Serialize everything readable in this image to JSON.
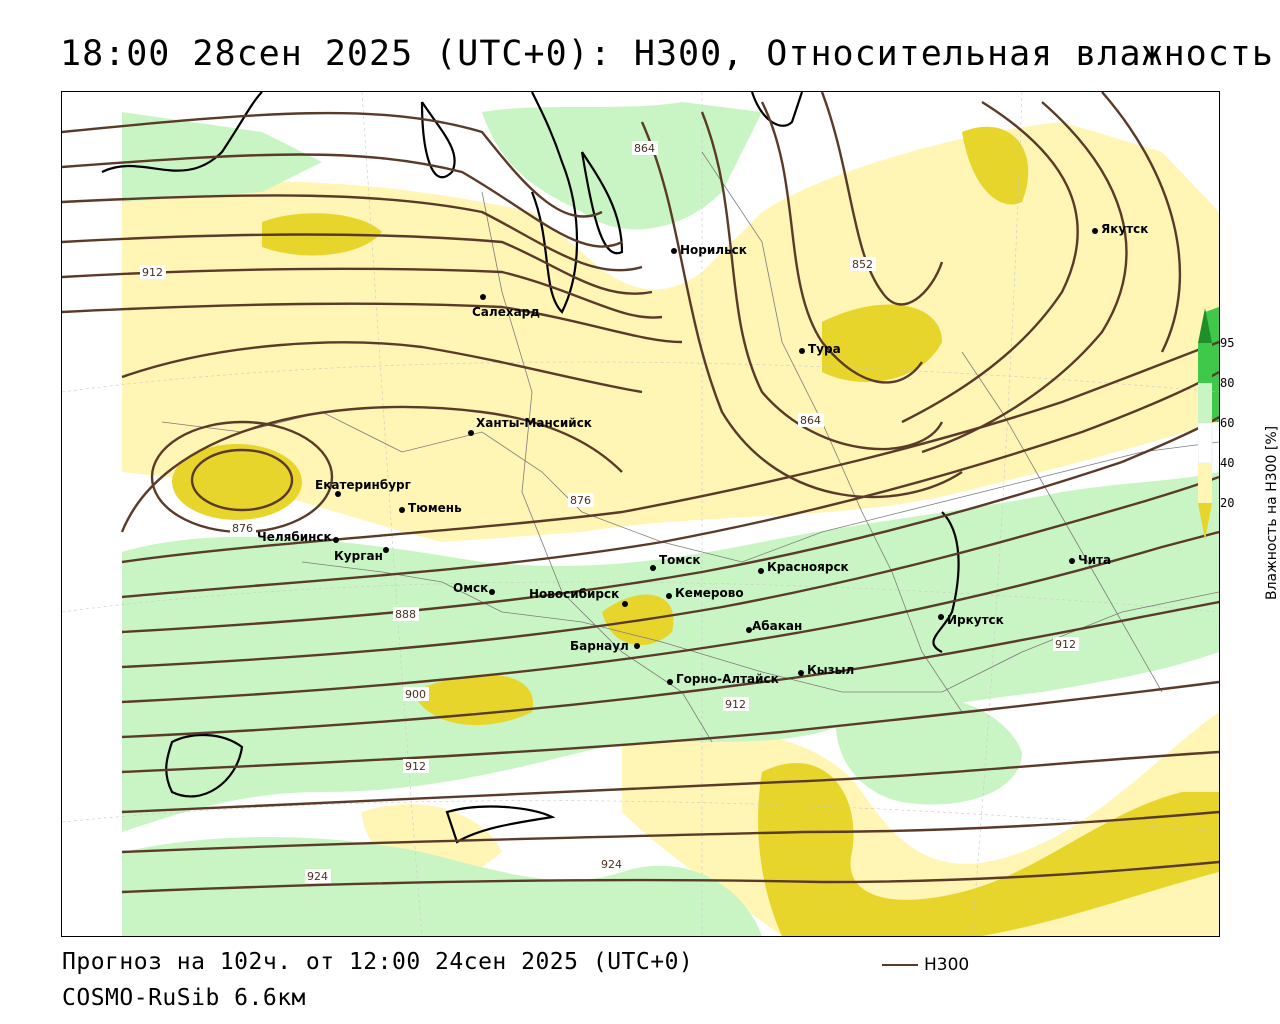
{
  "header": {
    "title": "18:00 28сен 2025 (UTC+0): H300, Относительная влажность"
  },
  "footer": {
    "forecast": "Прогноз на 102ч. от 12:00 24сен 2025 (UTC+0)",
    "model": "COSMO-RuSib 6.6км"
  },
  "legend": {
    "line_label": "H300",
    "line_color": "#5a3a28"
  },
  "colorbar": {
    "title": "Влажность на H300 [%]",
    "ticks": [
      "95",
      "80",
      "60",
      "40",
      "20"
    ],
    "colors": {
      "above_95": "#1f8f2a",
      "80_95": "#3ec94a",
      "60_80": "#c9f5c4",
      "40_60": "#ffffff",
      "20_40": "#fff5b4",
      "below_20": "#e8d52c"
    }
  },
  "map": {
    "cities": [
      {
        "name": "Якутск"
      },
      {
        "name": "Норильск"
      },
      {
        "name": "Салехард"
      },
      {
        "name": "Тура"
      },
      {
        "name": "Ханты-Мансийск"
      },
      {
        "name": "Екатеринбург"
      },
      {
        "name": "Тюмень"
      },
      {
        "name": "Челябинск"
      },
      {
        "name": "Курган"
      },
      {
        "name": "Омск"
      },
      {
        "name": "Новосибирск"
      },
      {
        "name": "Томск"
      },
      {
        "name": "Кемерово"
      },
      {
        "name": "Красноярск"
      },
      {
        "name": "Абакан"
      },
      {
        "name": "Барнаул"
      },
      {
        "name": "Горно-Алтайск"
      },
      {
        "name": "Кызыл"
      },
      {
        "name": "Иркутск"
      },
      {
        "name": "Чита"
      }
    ],
    "contour_labels": [
      "864",
      "852",
      "912",
      "864",
      "876",
      "876",
      "888",
      "900",
      "912",
      "912",
      "912",
      "912",
      "924",
      "924"
    ]
  }
}
